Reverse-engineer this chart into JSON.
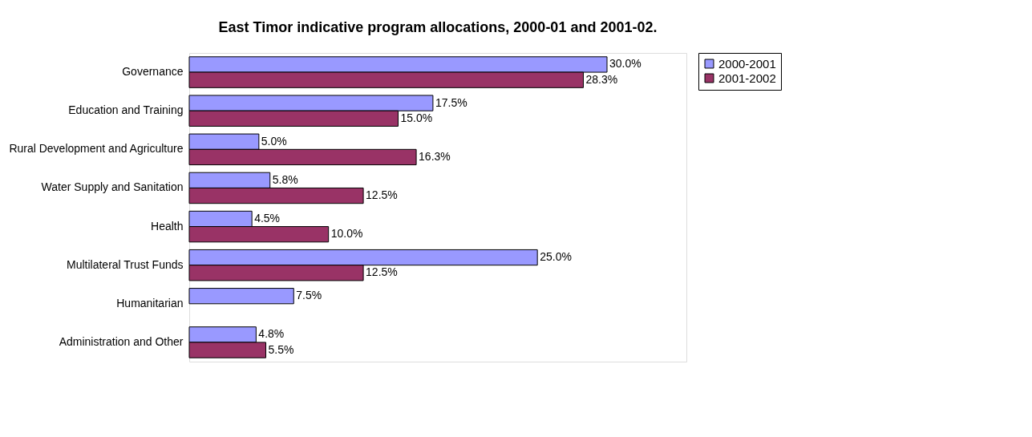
{
  "chart_data": {
    "type": "bar",
    "orientation": "horizontal",
    "title": "East Timor indicative program allocations, 2000-01 and 2001-02.",
    "categories": [
      "Governance",
      "Education and Training",
      "Rural Development and Agriculture",
      "Water Supply and Sanitation ",
      "Health",
      "Multilateral Trust Funds",
      "Humanitarian",
      "Administration and Other"
    ],
    "series": [
      {
        "name": "2000-2001",
        "color": "#9999ff",
        "values": [
          30.0,
          17.5,
          5.0,
          5.8,
          4.5,
          25.0,
          7.5,
          4.8
        ],
        "value_labels": [
          "30.0%",
          "17.5%",
          "5.0%",
          "5.8%",
          "4.5%",
          "25.0%",
          "7.5%",
          "4.8%"
        ]
      },
      {
        "name": "2001-2002",
        "color": "#993366",
        "values": [
          28.3,
          15.0,
          16.3,
          12.5,
          10.0,
          12.5,
          null,
          5.5
        ],
        "value_labels": [
          "28.3%",
          "15.0%",
          "16.3%",
          "12.5%",
          "10.0%",
          "12.5%",
          null,
          "5.5%"
        ]
      }
    ],
    "xlim": [
      0,
      35.7
    ],
    "tick_labels": "y",
    "legend": "right"
  }
}
